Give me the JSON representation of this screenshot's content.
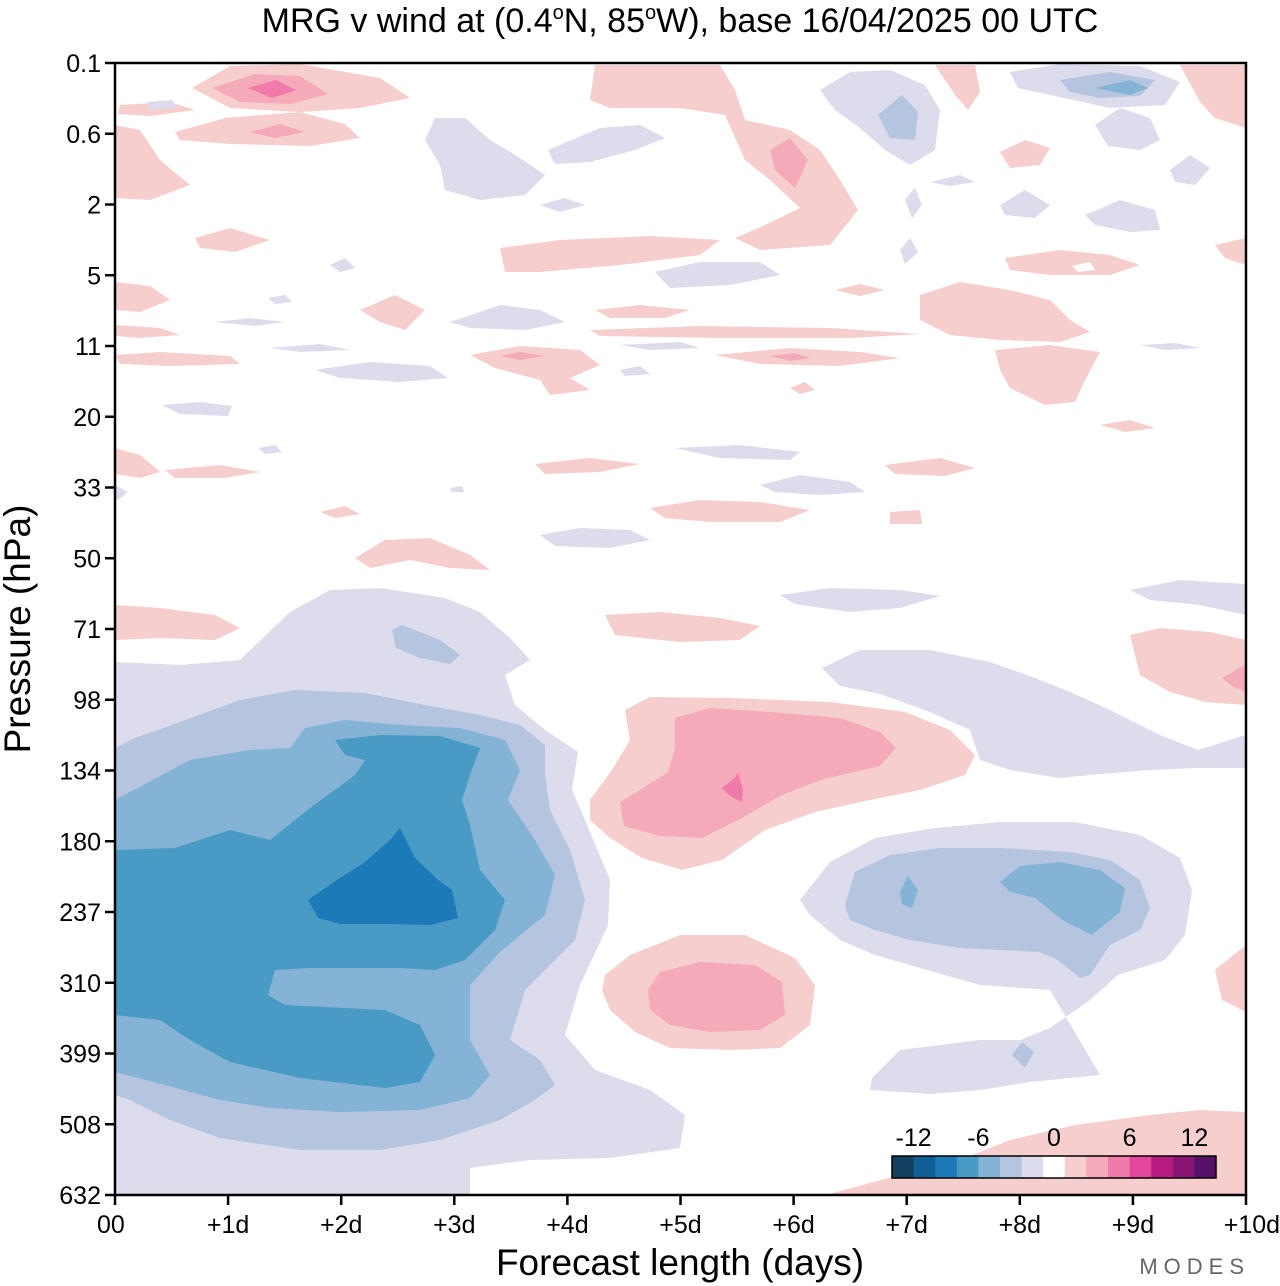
{
  "chart_data": {
    "type": "heatmap",
    "title": {
      "prefix": "MRG v wind at (0.4",
      "lat": "N, 85",
      "lon": "W),  base 16/04/2025  00 UTC",
      "deg": "o"
    },
    "xlabel": "Forecast length (days)",
    "ylabel": "Pressure (hPa)",
    "x_ticks": [
      "00",
      "+1d",
      "+2d",
      "+3d",
      "+4d",
      "+5d",
      "+6d",
      "+7d",
      "+8d",
      "+9d",
      "+10d"
    ],
    "x_range_days": [
      0,
      10
    ],
    "y_ticks": [
      "0.1",
      "0.6",
      "2",
      "5",
      "11",
      "20",
      "33",
      "50",
      "71",
      "98",
      "134",
      "180",
      "237",
      "310",
      "399",
      "508",
      "632"
    ],
    "y_scale": "log (top = 0.1 hPa, bottom = 632 hPa)",
    "colorbar": {
      "labels": [
        "-12",
        "-6",
        "0",
        "6",
        "12"
      ],
      "label_values": [
        -12,
        -6,
        0,
        6,
        12
      ],
      "levels": [
        -14,
        -12,
        -10,
        -8,
        -6,
        -4,
        -2,
        -1,
        1,
        2,
        4,
        6,
        8,
        10,
        12,
        14
      ],
      "colors": [
        "#143f5e",
        "#0f5f94",
        "#1b7ab7",
        "#4a9ac6",
        "#84b3d6",
        "#b5c5e0",
        "#dcdcec",
        "#ffffff",
        "#f7cece",
        "#f4aab8",
        "#f07aaa",
        "#e2479a",
        "#b81b80",
        "#871674",
        "#551165"
      ],
      "placement": "bottom-right"
    },
    "features": [
      {
        "sign": "negative",
        "peak": "-10",
        "days": [
          0,
          5.4
        ],
        "hPa": [
          134,
          632
        ],
        "note": "strong southward core near +2.5d, 237 hPa"
      },
      {
        "sign": "positive",
        "peak": "8",
        "days": [
          4.3,
          7.6
        ],
        "hPa": [
          98,
          180
        ],
        "note": "northward maximum near +5.5d, 134 hPa"
      },
      {
        "sign": "positive",
        "peak": "4",
        "days": [
          4.4,
          6.3
        ],
        "hPa": [
          270,
          420
        ]
      },
      {
        "sign": "negative",
        "peak": "-4",
        "days": [
          6.1,
          9.5
        ],
        "hPa": [
          180,
          508
        ]
      },
      {
        "sign": "positive",
        "peak": "2",
        "days": [
          6.3,
          10
        ],
        "hPa": [
          508,
          632
        ]
      },
      {
        "sign": "mixed",
        "peak": "6",
        "days": [
          0,
          10
        ],
        "hPa": [
          0.1,
          71
        ],
        "note": "weak alternating patches aloft"
      }
    ],
    "credit": "MODES"
  }
}
